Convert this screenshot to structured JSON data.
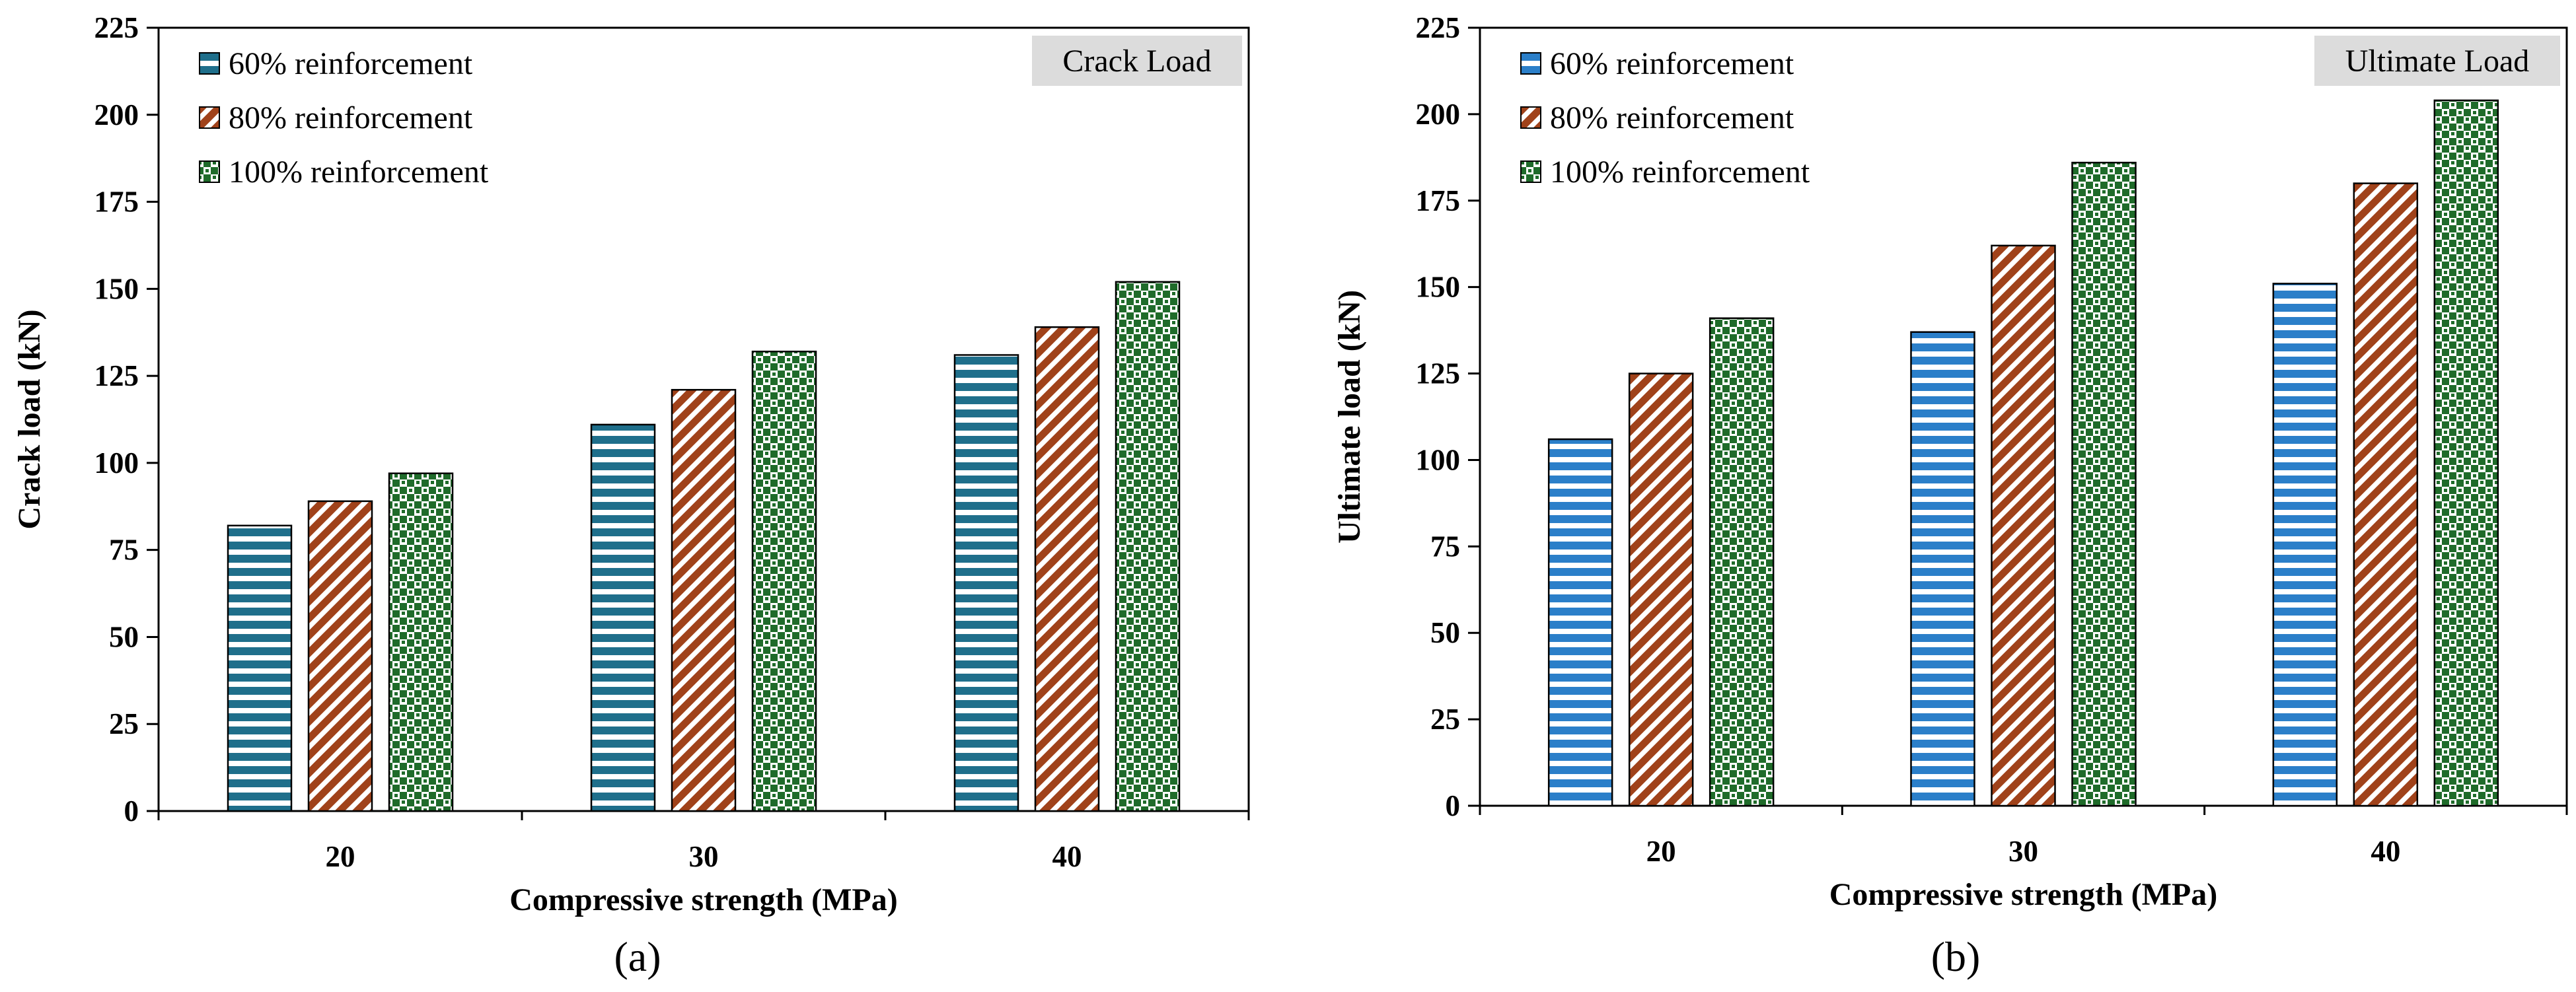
{
  "chart_data": [
    {
      "type": "bar",
      "panel_label": "(a)",
      "badge": "Crack Load",
      "xlabel": "Compressive strength (MPa)",
      "ylabel": "Crack load (kN)",
      "ylim": [
        0,
        225
      ],
      "yticks": [
        0,
        25,
        50,
        75,
        100,
        125,
        150,
        175,
        200,
        225
      ],
      "categories": [
        "20",
        "30",
        "40"
      ],
      "legend_position": "top-left",
      "series": [
        {
          "name": "60% reinforcement",
          "values": [
            82,
            111,
            131
          ],
          "color": "#1f6f8b",
          "pattern": "horizontal-stripes"
        },
        {
          "name": "80% reinforcement",
          "values": [
            89,
            121,
            139
          ],
          "color": "#a0421a",
          "pattern": "diagonal-stripes"
        },
        {
          "name": "100% reinforcement",
          "values": [
            97,
            132,
            152
          ],
          "color": "#1f6b2a",
          "pattern": "checkered"
        }
      ]
    },
    {
      "type": "bar",
      "panel_label": "(b)",
      "badge": "Ultimate Load",
      "xlabel": "Compressive strength (MPa)",
      "ylabel": "Ultimate load (kN)",
      "ylim": [
        0,
        225
      ],
      "yticks": [
        0,
        25,
        50,
        75,
        100,
        125,
        150,
        175,
        200,
        225
      ],
      "categories": [
        "20",
        "30",
        "40"
      ],
      "legend_position": "top-left",
      "series": [
        {
          "name": "60% reinforcement",
          "values": [
            106,
            137,
            151
          ],
          "color": "#2b7fc9",
          "pattern": "horizontal-stripes"
        },
        {
          "name": "80% reinforcement",
          "values": [
            125,
            162,
            180
          ],
          "color": "#a0421a",
          "pattern": "diagonal-stripes"
        },
        {
          "name": "100% reinforcement",
          "values": [
            141,
            186,
            204
          ],
          "color": "#1f6b2a",
          "pattern": "checkered"
        }
      ]
    }
  ]
}
